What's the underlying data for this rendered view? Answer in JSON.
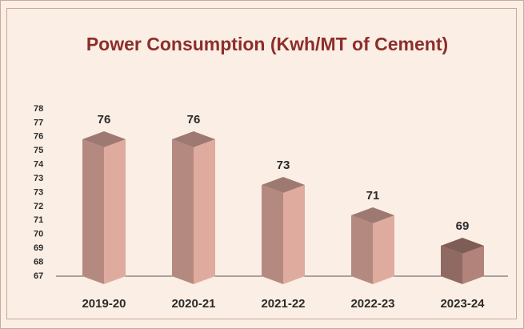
{
  "chart_data": {
    "type": "bar3d",
    "title": "Power Consumption (Kwh/MT of Cement)",
    "categories": [
      "2019-20",
      "2020-21",
      "2021-22",
      "2022-23",
      "2023-24"
    ],
    "values": [
      76,
      76,
      73,
      71,
      69
    ],
    "colors": [
      "#b48a80",
      "#b48a80",
      "#b48a80",
      "#b48a80",
      "#8f6a62"
    ],
    "ylim": [
      67,
      78
    ],
    "yticks": [
      67,
      {
        "value": 67.917,
        "label": "68"
      },
      {
        "value": 68.833,
        "label": "69"
      },
      {
        "value": 69.75,
        "label": "70"
      },
      {
        "value": 70.667,
        "label": "71"
      },
      {
        "value": 71.583,
        "label": "72"
      },
      {
        "value": 72.5,
        "label": "73"
      },
      {
        "value": 73.417,
        "label": "73"
      },
      {
        "value": 74.333,
        "label": "74"
      },
      {
        "value": 75.25,
        "label": "75"
      },
      {
        "value": 76.167,
        "label": "76"
      },
      {
        "value": 77.083,
        "label": "77"
      },
      78
    ]
  }
}
